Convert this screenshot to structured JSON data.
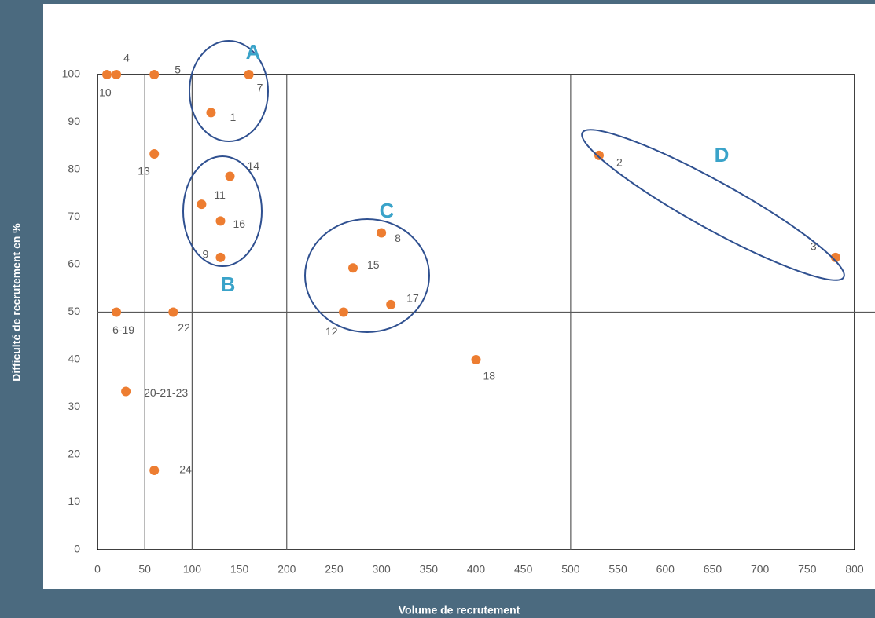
{
  "chart_data": {
    "type": "scatter",
    "x_label": "Volume de recrutement",
    "y_label": "Difficulté de recrutement en %",
    "color": "#ed7d31",
    "point_labels": [
      "1",
      "2",
      "3",
      "4",
      "5",
      "6-19",
      "7",
      "8",
      "9",
      "10",
      "11",
      "12",
      "13",
      "14",
      "15",
      "16",
      "17",
      "18",
      "20-21-23",
      "22",
      "24"
    ],
    "x": [
      120,
      530,
      780,
      20,
      60,
      20,
      160,
      300,
      130,
      10,
      110,
      260,
      60,
      140,
      270,
      130,
      310,
      400,
      30,
      80,
      60
    ],
    "values": [
      92,
      83,
      61.5,
      100,
      100,
      50,
      100,
      66.7,
      61.5,
      100,
      72.7,
      50,
      83.3,
      78.6,
      59.3,
      69.2,
      51.6,
      40,
      33.3,
      50,
      16.7
    ],
    "xlim": [
      0,
      800
    ],
    "ylim": [
      0,
      100
    ],
    "xticks": [
      0,
      50,
      100,
      150,
      200,
      250,
      300,
      350,
      400,
      450,
      500,
      550,
      600,
      650,
      700,
      750,
      800
    ],
    "yticks": [
      0,
      10,
      20,
      30,
      40,
      50,
      60,
      70,
      80,
      90,
      100
    ],
    "reference_lines": {
      "x": [
        50,
        100,
        200,
        500
      ],
      "y": [
        50
      ]
    },
    "groups": [
      "A",
      "B",
      "C",
      "D"
    ]
  }
}
